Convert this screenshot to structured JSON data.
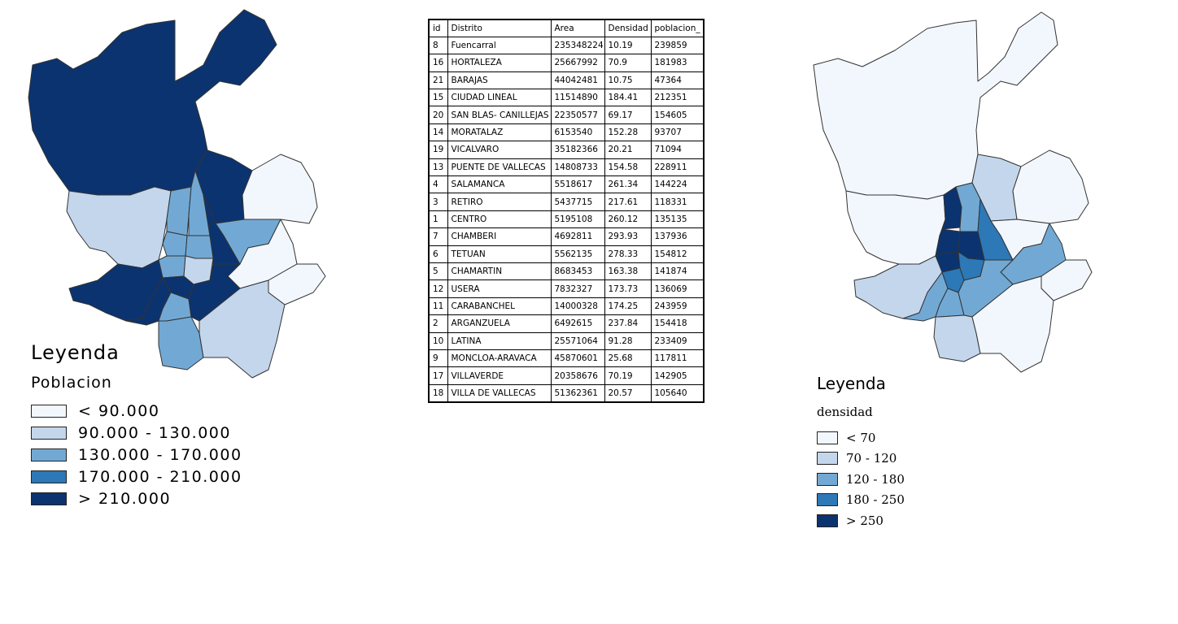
{
  "colors": {
    "class1": "#f2f7fd",
    "class2": "#c3d6ec",
    "class3": "#72a9d4",
    "class4": "#2d78b6",
    "class5": "#0b3370",
    "border": "#333333"
  },
  "left_legend": {
    "title": "Leyenda",
    "subtitle": "Poblacion",
    "items": [
      {
        "label": "< 90.000",
        "color": "#f2f7fd"
      },
      {
        "label": "90.000 - 130.000",
        "color": "#c3d6ec"
      },
      {
        "label": "130.000 - 170.000",
        "color": "#72a9d4"
      },
      {
        "label": "170.000 - 210.000",
        "color": "#2d78b6"
      },
      {
        "label": "> 210.000",
        "color": "#0b3370"
      }
    ]
  },
  "right_legend": {
    "title": "Leyenda",
    "subtitle": "densidad",
    "items": [
      {
        "label": "< 70",
        "color": "#f2f7fd"
      },
      {
        "label": "70 - 120",
        "color": "#c3d6ec"
      },
      {
        "label": "120 - 180",
        "color": "#72a9d4"
      },
      {
        "label": "180 - 250",
        "color": "#2d78b6"
      },
      {
        "label": "> 250",
        "color": "#0b3370"
      }
    ]
  },
  "table": {
    "headers": [
      "id",
      "Distrito",
      "Area",
      "Densidad",
      "poblacion_"
    ],
    "rows": [
      [
        "8",
        "Fuencarral",
        "235348224",
        "10.19",
        "239859"
      ],
      [
        "16",
        "HORTALEZA",
        "25667992",
        "70.9",
        "181983"
      ],
      [
        "21",
        "BARAJAS",
        "44042481",
        "10.75",
        "47364"
      ],
      [
        "15",
        "CIUDAD LINEAL",
        "11514890",
        "184.41",
        "212351"
      ],
      [
        "20",
        "SAN BLAS- CANILLEJAS",
        "22350577",
        "69.17",
        "154605"
      ],
      [
        "14",
        "MORATALAZ",
        "6153540",
        "152.28",
        "93707"
      ],
      [
        "19",
        "VICALVARO",
        "35182366",
        "20.21",
        "71094"
      ],
      [
        "13",
        "PUENTE DE VALLECAS",
        "14808733",
        "154.58",
        "228911"
      ],
      [
        "4",
        "SALAMANCA",
        "5518617",
        "261.34",
        "144224"
      ],
      [
        "3",
        "RETIRO",
        "5437715",
        "217.61",
        "118331"
      ],
      [
        "1",
        "CENTRO",
        "5195108",
        "260.12",
        "135135"
      ],
      [
        "7",
        "CHAMBERI",
        "4692811",
        "293.93",
        "137936"
      ],
      [
        "6",
        "TETUAN",
        "5562135",
        "278.33",
        "154812"
      ],
      [
        "5",
        "CHAMARTIN",
        "8683453",
        "163.38",
        "141874"
      ],
      [
        "12",
        "USERA",
        "7832327",
        "173.73",
        "136069"
      ],
      [
        "11",
        "CARABANCHEL",
        "14000328",
        "174.25",
        "243959"
      ],
      [
        "2",
        "ARGANZUELA",
        "6492615",
        "237.84",
        "154418"
      ],
      [
        "10",
        "LATINA",
        "25571064",
        "91.28",
        "233409"
      ],
      [
        "9",
        "MONCLOA-ARAVACA",
        "45870601",
        "25.68",
        "117811"
      ],
      [
        "17",
        "VILLAVERDE",
        "20358676",
        "70.19",
        "142905"
      ],
      [
        "18",
        "VILLA DE VALLECAS",
        "51362361",
        "20.57",
        "105640"
      ]
    ]
  }
}
